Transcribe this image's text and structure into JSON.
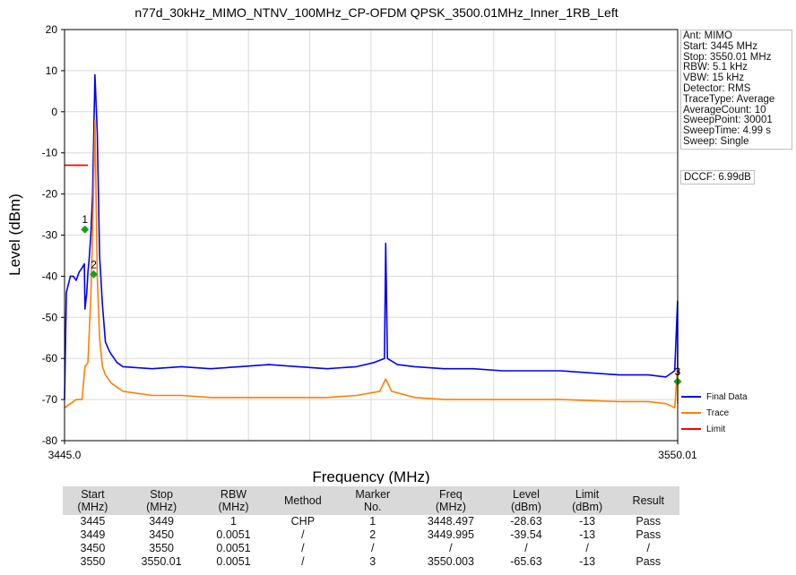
{
  "colors": {
    "final_data": "#0000ff",
    "trace": "#ff8000",
    "limit": "#ff0000",
    "marker": "#1a9e1a"
  },
  "chart_data": {
    "type": "line",
    "title": "n77d_30kHz_MIMO_NTNV_100MHz_CP-OFDM QPSK_3500.01MHz_Inner_1RB_Left",
    "xlabel": "Frequency (MHz)",
    "ylabel": "Level (dBm)",
    "xlim": [
      3445.0,
      3550.01
    ],
    "ylim": [
      -80,
      20
    ],
    "x_ticklabels": [
      "3445.0",
      "3550.01"
    ],
    "y_ticks": [
      20,
      10,
      0,
      -10,
      -20,
      -30,
      -40,
      -50,
      -60,
      -70,
      -80
    ],
    "grid": true,
    "legend_placement": "bottom-right",
    "series": [
      {
        "name": "Final Data",
        "x": [
          3445,
          3445.3,
          3446,
          3446.5,
          3447,
          3447.5,
          3448,
          3448.4,
          3448.5,
          3448.8,
          3449,
          3449.2,
          3449.5,
          3449.8,
          3450.2,
          3450.6,
          3451,
          3451.5,
          3452,
          3452.6,
          3453,
          3454,
          3455,
          3460,
          3465,
          3470,
          3475,
          3480,
          3485,
          3490,
          3495,
          3498,
          3499.8,
          3500.01,
          3500.3,
          3502,
          3505,
          3510,
          3515,
          3520,
          3525,
          3530,
          3535,
          3540,
          3545,
          3548,
          3549.5,
          3550,
          3550.2,
          3550.01
        ],
        "y": [
          -70,
          -44,
          -40,
          -40,
          -41,
          -39,
          -38,
          -37,
          -48,
          -44,
          -39,
          -36,
          -30,
          -20,
          9,
          -5,
          -35,
          -47,
          -56,
          -58,
          -59,
          -61,
          -62,
          -62.5,
          -62,
          -62.5,
          -62,
          -61.5,
          -62,
          -62.5,
          -62,
          -61,
          -60,
          -32,
          -60,
          -61.5,
          -62,
          -62.5,
          -62.5,
          -63,
          -63,
          -63,
          -63.5,
          -64,
          -64,
          -64.5,
          -63,
          -46,
          -63,
          -64
        ]
      },
      {
        "name": "Trace",
        "x": [
          3445,
          3446,
          3447,
          3448,
          3448.5,
          3449,
          3449.5,
          3449.8,
          3450.2,
          3450.6,
          3451,
          3451.5,
          3452,
          3453,
          3455,
          3460,
          3465,
          3470,
          3480,
          3490,
          3495,
          3499,
          3500.01,
          3501,
          3505,
          3510,
          3520,
          3530,
          3540,
          3545,
          3548,
          3549.5,
          3550,
          3550.01
        ],
        "y": [
          -72,
          -71,
          -70,
          -70,
          -62,
          -61,
          -45,
          -30,
          -2,
          -40,
          -55,
          -62,
          -64,
          -66,
          -68,
          -69,
          -69,
          -69.5,
          -69.5,
          -69.5,
          -69,
          -68,
          -65,
          -68,
          -69.5,
          -70,
          -70,
          -70,
          -70.5,
          -70.5,
          -71,
          -72,
          -62,
          -71
        ]
      }
    ],
    "limit_lines": [
      {
        "name": "Limit",
        "x": [
          3445.0,
          3449.0
        ],
        "y": [
          -13,
          -13
        ]
      }
    ],
    "markers": [
      {
        "label": "1",
        "x": 3448.497,
        "y": -28.63
      },
      {
        "label": "2",
        "x": 3449.995,
        "y": -39.54
      },
      {
        "label": "3",
        "x": 3550.003,
        "y": -65.63
      }
    ]
  },
  "side_info": [
    "Ant: MIMO",
    "Start: 3445 MHz",
    "Stop: 3550.01 MHz",
    "RBW: 5.1 kHz",
    "VBW: 15 kHz",
    "Detector: RMS",
    "TraceType: Average",
    "AverageCount: 10",
    "SweepPoint: 30001",
    "SweepTime: 4.99 s",
    "Sweep: Single"
  ],
  "dccf": "DCCF: 6.99dB",
  "legend": [
    "Final Data",
    "Trace",
    "Limit"
  ],
  "table": {
    "headers": [
      [
        "Start",
        "(MHz)"
      ],
      [
        "Stop",
        "(MHz)"
      ],
      [
        "RBW",
        "(MHz)"
      ],
      [
        "Method",
        ""
      ],
      [
        "Marker",
        "No."
      ],
      [
        "Freq",
        "(MHz)"
      ],
      [
        "Level",
        "(dBm)"
      ],
      [
        "Limit",
        "(dBm)"
      ],
      [
        "Result",
        ""
      ]
    ],
    "rows": [
      [
        "3445",
        "3449",
        "1",
        "CHP",
        "1",
        "3448.497",
        "-28.63",
        "-13",
        "Pass"
      ],
      [
        "3449",
        "3450",
        "0.0051",
        "/",
        "2",
        "3449.995",
        "-39.54",
        "-13",
        "Pass"
      ],
      [
        "3450",
        "3550",
        "0.0051",
        "/",
        "/",
        "/",
        "/",
        "/",
        "/"
      ],
      [
        "3550",
        "3550.01",
        "0.0051",
        "/",
        "3",
        "3550.003",
        "-65.63",
        "-13",
        "Pass"
      ]
    ]
  }
}
